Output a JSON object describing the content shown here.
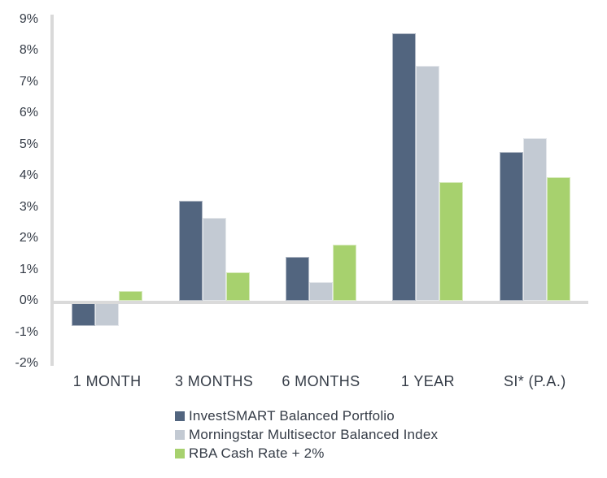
{
  "chart_data": {
    "type": "bar",
    "title": "",
    "categories": [
      "1 MONTH",
      "3 MONTHS",
      "6 MONTHS",
      "1 YEAR",
      "SI* (P.A.)"
    ],
    "series": [
      {
        "name": "InvestSMART Balanced Portfolio",
        "color": "#52657F",
        "values": [
          -0.8,
          3.2,
          1.4,
          8.55,
          4.75
        ]
      },
      {
        "name": "Morningstar Multisector Balanced Index",
        "color": "#C3CAD3",
        "values": [
          -0.8,
          2.65,
          0.6,
          7.5,
          5.2
        ]
      },
      {
        "name": "RBA Cash Rate + 2%",
        "color": "#A7D16E",
        "values": [
          0.3,
          0.9,
          1.8,
          3.8,
          3.95
        ]
      }
    ],
    "ylim": [
      -2,
      9
    ],
    "ytick_step": 1,
    "ytick_suffix": "%",
    "grid": false,
    "legend_position": "bottom-left",
    "axis_color": "#D9D9D9",
    "zero_line_color": "#DADADA",
    "text_color": "#353C47",
    "background": "#FFFFFF"
  }
}
